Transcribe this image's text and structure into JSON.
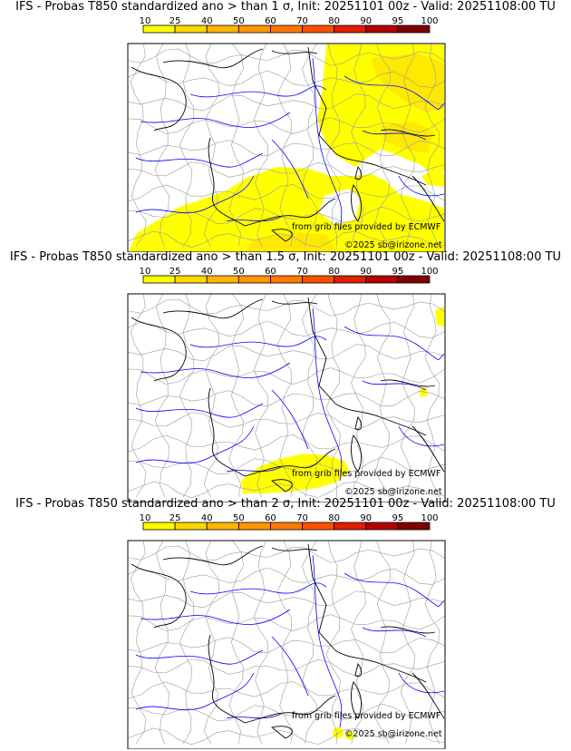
{
  "colorbar": {
    "levels": [
      "10",
      "25",
      "40",
      "50",
      "60",
      "70",
      "80",
      "90",
      "95",
      "100"
    ],
    "colors": [
      "#ffff00",
      "#ffd700",
      "#ffb400",
      "#ff9600",
      "#ff7800",
      "#ff5000",
      "#e01e00",
      "#b40000",
      "#7d0000"
    ]
  },
  "overlay": {
    "credit": "from grib files provided by ECMWF",
    "copyright": "©2025 sb@irizone.net"
  },
  "palette": {
    "prob": "#ffff00",
    "river": "#0000ff",
    "border": "#000000",
    "region": "#9b9b9b"
  },
  "panels": [
    {
      "title": "IFS - Probas T850  standardized ano > than 1 σ, Init: 20251101 00z - Valid: 20251108:00 TU",
      "extent": "large"
    },
    {
      "title": "IFS - Probas T850  standardized ano > than 1.5 σ, Init: 20251101 00z - Valid: 20251108:00 TU",
      "extent": "medium"
    },
    {
      "title": "IFS - Probas T850  standardized ano > than 2 σ, Init: 20251101 00z - Valid: 20251108:00 TU",
      "extent": "small"
    }
  ]
}
